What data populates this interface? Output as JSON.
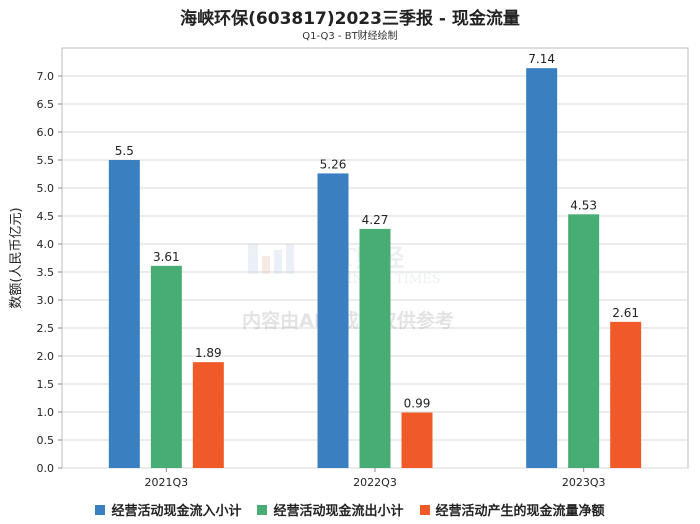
{
  "chart_data": {
    "type": "bar",
    "title": "海峡环保(603817)2023三季报 - 现金流量",
    "subtitle": "Q1-Q3 - BT财经绘制",
    "ylabel": "数额(人民币亿元)",
    "xlabel": "",
    "categories": [
      "2021Q3",
      "2022Q3",
      "2023Q3"
    ],
    "ylim": [
      0,
      7.5
    ],
    "yticks": [
      "0.0",
      "0.5",
      "1.0",
      "1.5",
      "2.0",
      "2.5",
      "3.0",
      "3.5",
      "4.0",
      "4.5",
      "5.0",
      "5.5",
      "6.0",
      "6.5",
      "7.0"
    ],
    "grid": true,
    "legend_position": "bottom",
    "series": [
      {
        "name": "经营活动现金流入小计",
        "color": "#3a80c1",
        "values": [
          5.5,
          5.26,
          7.14
        ],
        "labels": [
          "5.5",
          "5.26",
          "7.14"
        ]
      },
      {
        "name": "经营活动现金流出小计",
        "color": "#48ad74",
        "values": [
          3.61,
          4.27,
          4.53
        ],
        "labels": [
          "3.61",
          "4.27",
          "4.53"
        ]
      },
      {
        "name": "经营活动产生的现金流量净额",
        "color": "#f05a28",
        "values": [
          1.89,
          0.99,
          2.61
        ],
        "labels": [
          "1.89",
          "0.99",
          "2.61"
        ]
      }
    ]
  },
  "watermark": {
    "logo_text": "BT财经",
    "logo_sub": "BUSINESS TIMES",
    "notice": "内容由AI生成，仅供参考"
  }
}
